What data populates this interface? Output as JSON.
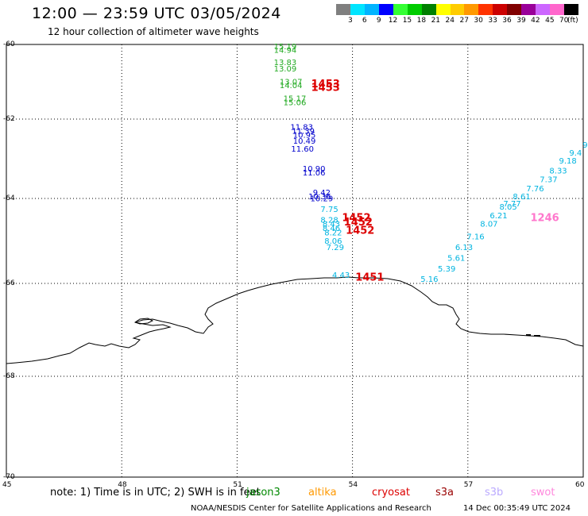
{
  "header": {
    "title": "12:00 — 23:59 UTC 03/05/2024",
    "subtitle": "12 hour collection of altimeter wave heights"
  },
  "colorbar": {
    "colors": [
      "#7f7f7f",
      "#00e5ff",
      "#00b4ff",
      "#0000ff",
      "#33ff33",
      "#00cc00",
      "#008000",
      "#ffff00",
      "#ffcc00",
      "#ff9900",
      "#ff3300",
      "#cc0000",
      "#800000",
      "#990099",
      "#cc66ff",
      "#ff66cc",
      "#000000"
    ],
    "labels": [
      "3",
      "6",
      "9",
      "12",
      "15",
      "18",
      "21",
      "24",
      "27",
      "30",
      "33",
      "36",
      "39",
      "42",
      "45",
      "70"
    ],
    "unit": "(ft)"
  },
  "map": {
    "lat_ticks": [
      "-60",
      "-62",
      "-64",
      "-66",
      "-68",
      "-70"
    ],
    "lon_ticks": [
      "45",
      "48",
      "51",
      "54",
      "57",
      "60"
    ]
  },
  "tracks": {
    "green": {
      "color": "#22aa22",
      "points": [
        {
          "t": "15.19",
          "lon": 52.25,
          "lat": -60.05
        },
        {
          "t": "14.94",
          "lon": 52.25,
          "lat": -60.15
        },
        {
          "t": "13.83",
          "lon": 52.25,
          "lat": -60.48
        },
        {
          "t": "13.09",
          "lon": 52.25,
          "lat": -60.65
        },
        {
          "t": "13.07",
          "lon": 52.4,
          "lat": -61.0
        },
        {
          "t": "14.04",
          "lon": 52.4,
          "lat": -61.1
        },
        {
          "t": "15.17",
          "lon": 52.5,
          "lat": -61.45
        },
        {
          "t": "15.06",
          "lon": 52.5,
          "lat": -61.55
        }
      ]
    },
    "blue": {
      "color": "#0000cc",
      "points": [
        {
          "t": "11.83",
          "lon": 52.68,
          "lat": -62.2
        },
        {
          "t": "11.39",
          "lon": 52.72,
          "lat": -62.3
        },
        {
          "t": "10.95",
          "lon": 52.75,
          "lat": -62.4
        },
        {
          "t": "10.49",
          "lon": 52.75,
          "lat": -62.55
        },
        {
          "t": "11.60",
          "lon": 52.7,
          "lat": -62.75
        },
        {
          "t": "10.90",
          "lon": 53.0,
          "lat": -63.25
        },
        {
          "t": "11.06",
          "lon": 53.0,
          "lat": -63.35
        },
        {
          "t": "9.42",
          "lon": 53.2,
          "lat": -63.85
        },
        {
          "t": "10.36",
          "lon": 53.15,
          "lat": -63.95
        },
        {
          "t": "10.29",
          "lon": 53.2,
          "lat": -64.0
        }
      ]
    },
    "cyan_west": {
      "color": "#00b4e0",
      "points": [
        {
          "t": "7.75",
          "lon": 53.4,
          "lat": -64.25
        },
        {
          "t": "8.28",
          "lon": 53.4,
          "lat": -64.5
        },
        {
          "t": "8.43",
          "lon": 53.45,
          "lat": -64.6
        },
        {
          "t": "8.46",
          "lon": 53.45,
          "lat": -64.7
        },
        {
          "t": "8.22",
          "lon": 53.5,
          "lat": -64.8
        },
        {
          "t": "8.06",
          "lon": 53.5,
          "lat": -65.0
        },
        {
          "t": "7.29",
          "lon": 53.55,
          "lat": -65.15
        },
        {
          "t": "4.43",
          "lon": 53.7,
          "lat": -65.8
        }
      ]
    },
    "cyan_east": {
      "color": "#00b4e0",
      "points": [
        {
          "t": "5.16",
          "lon": 56.0,
          "lat": -65.9
        },
        {
          "t": "5.39",
          "lon": 56.45,
          "lat": -65.65
        },
        {
          "t": "5.61",
          "lon": 56.7,
          "lat": -65.4
        },
        {
          "t": "6.13",
          "lon": 56.9,
          "lat": -65.15
        },
        {
          "t": "7.16",
          "lon": 57.2,
          "lat": -64.9
        },
        {
          "t": "8.07",
          "lon": 57.55,
          "lat": -64.6
        },
        {
          "t": "6.21",
          "lon": 57.8,
          "lat": -64.4
        },
        {
          "t": "8.05",
          "lon": 58.05,
          "lat": -64.2
        },
        {
          "t": "7.77",
          "lon": 58.15,
          "lat": -64.12
        },
        {
          "t": "8.61",
          "lon": 58.4,
          "lat": -63.95
        },
        {
          "t": "7.76",
          "lon": 58.75,
          "lat": -63.75
        },
        {
          "t": "7.37",
          "lon": 59.1,
          "lat": -63.52
        },
        {
          "t": "8.33",
          "lon": 59.35,
          "lat": -63.3
        },
        {
          "t": "9.18",
          "lon": 59.6,
          "lat": -63.05
        },
        {
          "t": "9.4",
          "lon": 59.8,
          "lat": -62.85
        },
        {
          "t": "9",
          "lon": 60.05,
          "lat": -62.65
        }
      ]
    },
    "revs": [
      {
        "t": "1453",
        "color": "#dd0000",
        "lon": 53.3,
        "lat": -61.05
      },
      {
        "t": "1453",
        "color": "#dd0000",
        "lon": 53.3,
        "lat": -61.15
      },
      {
        "t": "1452",
        "color": "#dd0000",
        "lon": 54.1,
        "lat": -64.45
      },
      {
        "t": "1452",
        "color": "#dd0000",
        "lon": 54.15,
        "lat": -64.55
      },
      {
        "t": "1452",
        "color": "#dd0000",
        "lon": 54.2,
        "lat": -64.75
      },
      {
        "t": "1451",
        "color": "#dd0000",
        "lon": 54.45,
        "lat": -65.85
      },
      {
        "t": "1246",
        "color": "#ff77cc",
        "lon": 59.0,
        "lat": -64.45
      }
    ]
  },
  "footer": {
    "note": "note: 1) Time is in UTC; 2) SWH is in feet",
    "satellites": [
      {
        "name": "jason3",
        "color": "#008800"
      },
      {
        "name": "altika",
        "color": "#ff9900"
      },
      {
        "name": "cryosat",
        "color": "#dd0000"
      },
      {
        "name": "s3a",
        "color": "#990000"
      },
      {
        "name": "s3b",
        "color": "#bbaaff"
      },
      {
        "name": "swot",
        "color": "#ff88dd"
      }
    ],
    "credit": "NOAA/NESDIS Center for Satellite Applications and Research",
    "timestamp": "14 Dec 00:35:49 UTC 2024"
  }
}
